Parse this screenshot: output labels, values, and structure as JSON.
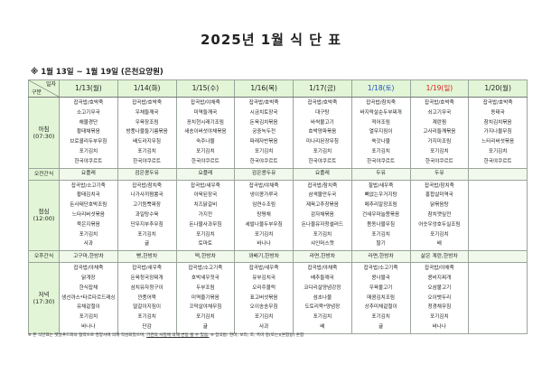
{
  "title": "2025년 1월 식 단 표",
  "subtitle": "※ 1월 13일 ~ 1월 19일 (은천요양원)",
  "corner": {
    "top": "일자",
    "bottom": "구분"
  },
  "colors": {
    "header_bg": "#e2f5d6",
    "saturday": "#1f4fbf",
    "sunday": "#d92020"
  },
  "days": [
    {
      "label": "1/13(월)",
      "type": "weekday"
    },
    {
      "label": "1/14(화)",
      "type": "weekday"
    },
    {
      "label": "1/15(수)",
      "type": "weekday"
    },
    {
      "label": "1/16(목)",
      "type": "weekday"
    },
    {
      "label": "1/17(금)",
      "type": "weekday"
    },
    {
      "label": "1/18(토)",
      "type": "saturday"
    },
    {
      "label": "1/19(일)",
      "type": "sunday"
    },
    {
      "label": "1/20(월)",
      "type": "weekday"
    }
  ],
  "rows": [
    {
      "label": "아침\n(07:30)",
      "kind": "meal",
      "cells": [
        [
          "잡곡밥/호박죽",
          "소고기무국",
          "해물경단",
          "황태채볶음",
          "브로콜리두부무침",
          "포기김치",
          "한국야쿠르트"
        ],
        [
          "잡곡밥/호박죽",
          "우채들깨국",
          "우육장조림",
          "방풍나물들기름볶음",
          "배도라지무침",
          "포기김치",
          "한국야쿠르트"
        ],
        [
          "잡곡밥/야채죽",
          "미역들깨국",
          "꽁치현시래기조림",
          "새송이버섯야채볶음",
          "숙주나물",
          "포기김치",
          "한국야쿠르트"
        ],
        [
          "잡곡밥/호박죽",
          "시금치토장국",
          "돈육김치볶음",
          "궁중녹두전",
          "파래자반볶음",
          "포기김치",
          "한국야쿠르트"
        ],
        [
          "잡곡밥/호박죽",
          "대구탕",
          "바싹불고기",
          "호박양파볶음",
          "미나리된장무침",
          "포기김치",
          "한국야쿠르트"
        ],
        [
          "잡곡밥/참치죽",
          "바지락살순두부찌개",
          "적어조림",
          "열무지짐이",
          "쑥갓나물",
          "포기김치",
          "한국야쿠르트"
        ],
        [
          "잡곡밥/호박죽",
          "쇠고기무국",
          "계란찜",
          "고사리들깨볶음",
          "가지미조림",
          "포기김치",
          "한국야쿠르트"
        ],
        [
          "잡곡밥/호박죽",
          "동태국",
          "참치김치볶음",
          "가지나물무침",
          "느타리버섯볶음",
          "포기김치",
          "한국야쿠르트"
        ]
      ]
    },
    {
      "label": "오전간식",
      "kind": "snack",
      "cells": [
        "요플레",
        "검은콩두유",
        "요플레",
        "검은콩두유",
        "요플레",
        "두유",
        "두유",
        ""
      ]
    },
    {
      "label": "점심\n(12:00)",
      "kind": "meal",
      "cells": [
        [
          "잡곡밥/소고기죽",
          "황태김치국",
          "돈사태단호박조림",
          "느타리버섯볶음",
          "묵은지볶음",
          "포기김치",
          "사과"
        ],
        [
          "잡곡밥/참치죽",
          "나가사끼짬뽕국",
          "고기듬뿍짜장",
          "과일탕수육",
          "단무지부추무침",
          "포기김치",
          "귤"
        ],
        [
          "잡곡밥/새우죽",
          "아욱된장국",
          "치즈닭갈비",
          "가지전",
          "돈나물사과무침",
          "포기김치",
          "토마토"
        ],
        [
          "잡곡밥/야채죽",
          "냉이콩가루국",
          "임연수조림",
          "탕평채",
          "세발나물두부무침",
          "포기김치",
          "바나나"
        ],
        [
          "잡곡밥/참치죽",
          "삼색물만두국",
          "제육고추장볶음",
          "감자채볶음",
          "돈나물유자청샐러드",
          "포기김치",
          "샤인머스캣"
        ],
        [
          "찰밥/새우죽",
          "뼈없는우거지탕",
          "메추리알장조림",
          "건새우마늘쫑볶음",
          "봄동나물무침",
          "포기김치",
          "딸기"
        ],
        [
          "잡곡밥/참치죽",
          "홍합살미역국",
          "닭볶음탕",
          "참치깻잎전",
          "어슷우엉호두실조림",
          "포기김치",
          "배"
        ],
        []
      ]
    },
    {
      "label": "오후간식",
      "kind": "snack",
      "cells": [
        "고구마,한방차",
        "빵,한방차",
        "떡,한방차",
        "꽈배기,한방차",
        "라면,한방차",
        "라면,한방차",
        "삶은 계란,한방차",
        ""
      ]
    },
    {
      "label": "저녁\n(17:30)",
      "kind": "meal",
      "cells": [
        [
          "잡곡밥/야채죽",
          "닭개장",
          "한식잡채",
          "생선까스*타르타르드레싱",
          "유채겉절이",
          "포기김치",
          "바나나"
        ],
        [
          "잡곡밥/새우죽",
          "돈육청국장찌개",
          "삼치유자청구이",
          "깐풍어묵",
          "얼갈이지짐이",
          "포기김치",
          "단감"
        ],
        [
          "잡곡밥/소고기죽",
          "호박새우젓국",
          "두부조림",
          "미역줄기볶음",
          "꼬막살야채무침",
          "포기김치",
          "귤"
        ],
        [
          "잡곡밥/새우죽",
          "유부김치국",
          "오리주물럭",
          "표고버섯볶음",
          "오이송송무침",
          "포기김치",
          "사과"
        ],
        [
          "잡곡밥/야채죽",
          "배추들깨국",
          "코다리살양념강정",
          "섬초나물",
          "도토리묵*양념장",
          "포기김치",
          "배"
        ],
        [
          "잡곡밥/소고기죽",
          "콩나물국",
          "우육불고기",
          "매콤김치조림",
          "상추미채겉절이",
          "포기김치",
          "귤"
        ],
        [
          "잡곡밥/야채죽",
          "콩비지찌개",
          "오삼불고기",
          "오이뱃두리",
          "청경채무침",
          "포기김치",
          "바나나"
        ],
        []
      ]
    }
  ],
  "footer": {
    "note1": "※ 본 식단표는 햇살푸드와의 협약으로 영양사에 의해 작성되었으며, ",
    "note1_underlined": "기관의 사정에 의해 변동 될 수 있음.",
    "note2": " ※ 잡곡밥: 현미, 보리, 조, 흑미 중(또는)(혼합용) 혼합"
  }
}
